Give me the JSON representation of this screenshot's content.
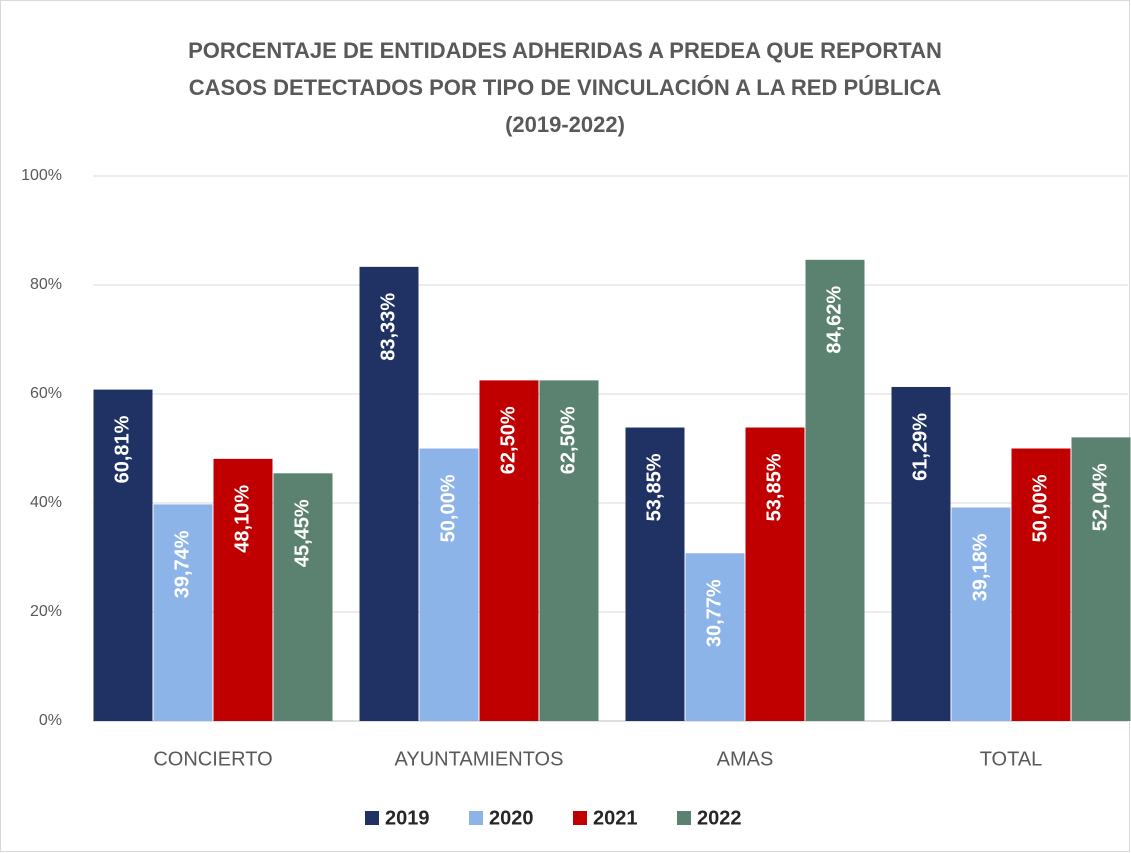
{
  "chart_data": {
    "type": "bar",
    "title": [
      "PORCENTAJE DE ENTIDADES ADHERIDAS A PREDEA QUE REPORTAN",
      "CASOS DETECTADOS POR TIPO DE VINCULACIÓN A LA RED PÚBLICA",
      "(2019-2022)"
    ],
    "categories": [
      "CONCIERTO",
      "AYUNTAMIENTOS",
      "AMAS",
      "TOTAL"
    ],
    "series": [
      {
        "name": "2019",
        "color": "#203264",
        "values": [
          60.81,
          83.33,
          53.85,
          61.29
        ],
        "value_labels": [
          "60,81%",
          "83,33%",
          "53,85%",
          "61,29%"
        ]
      },
      {
        "name": "2020",
        "color": "#8db4e8",
        "values": [
          39.74,
          50.0,
          30.77,
          39.18
        ],
        "value_labels": [
          "39,74%",
          "50,00%",
          "30,77%",
          "39,18%"
        ]
      },
      {
        "name": "2021",
        "color": "#c00000",
        "values": [
          48.1,
          62.5,
          53.85,
          50.0
        ],
        "value_labels": [
          "48,10%",
          "62,50%",
          "53,85%",
          "50,00%"
        ]
      },
      {
        "name": "2022",
        "color": "#5b8170",
        "values": [
          45.45,
          62.5,
          84.62,
          52.04
        ],
        "value_labels": [
          "45,45%",
          "62,50%",
          "84,62%",
          "52,04%"
        ]
      }
    ],
    "ylim": [
      0,
      100
    ],
    "yticks": [
      {
        "value": 0,
        "label": "0%"
      },
      {
        "value": 20,
        "label": "20%"
      },
      {
        "value": 40,
        "label": "40%"
      },
      {
        "value": 60,
        "label": "60%"
      },
      {
        "value": 80,
        "label": "80%"
      },
      {
        "value": 100,
        "label": "100%"
      }
    ],
    "grid": true,
    "legend": "bottom"
  }
}
